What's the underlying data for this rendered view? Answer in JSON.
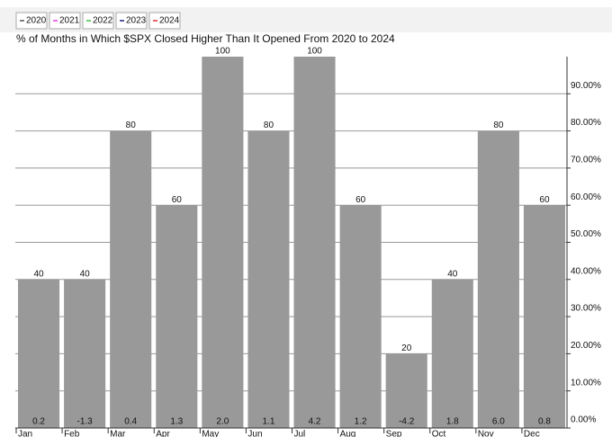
{
  "chart_data": {
    "type": "bar",
    "title": "% of Months in Which $SPX Closed Higher Than It Opened From 2020 to 2024",
    "legend": [
      {
        "name": "2020",
        "color": "#555555"
      },
      {
        "name": "2021",
        "color": "#e040e0"
      },
      {
        "name": "2022",
        "color": "#40c040"
      },
      {
        "name": "2023",
        "color": "#202080"
      },
      {
        "name": "2024",
        "color": "#e03030"
      }
    ],
    "categories": [
      "Jan",
      "Feb",
      "Mar",
      "Apr",
      "May",
      "Jun",
      "Jul",
      "Aug",
      "Sep",
      "Oct",
      "Nov",
      "Dec"
    ],
    "values": [
      40,
      40,
      80,
      60,
      100,
      80,
      100,
      60,
      20,
      40,
      80,
      60
    ],
    "inner_values": [
      0.2,
      -1.3,
      0.4,
      1.3,
      2,
      1.1,
      4.2,
      1.2,
      -4.2,
      1.8,
      6,
      0.8
    ],
    "inner_value_labels": [
      "0.2",
      "-1.3",
      "0.4",
      "1.3",
      "2.0",
      "1.1",
      "4.2",
      "1.2",
      "-4.2",
      "1.8",
      "6.0",
      "0.8"
    ],
    "color": "#999999",
    "ylim": [
      0,
      100
    ],
    "yticks": [
      {
        "value": 0,
        "label": "0.00%"
      },
      {
        "value": 10,
        "label": "10.00%"
      },
      {
        "value": 20,
        "label": "20.00%"
      },
      {
        "value": 30,
        "label": "30.00%"
      },
      {
        "value": 40,
        "label": "40.00%"
      },
      {
        "value": 50,
        "label": "50.00%"
      },
      {
        "value": 60,
        "label": "60.00%"
      },
      {
        "value": 70,
        "label": "70.00%"
      },
      {
        "value": 80,
        "label": "80.00%"
      },
      {
        "value": 90,
        "label": "90.00%"
      }
    ],
    "grid": true
  }
}
